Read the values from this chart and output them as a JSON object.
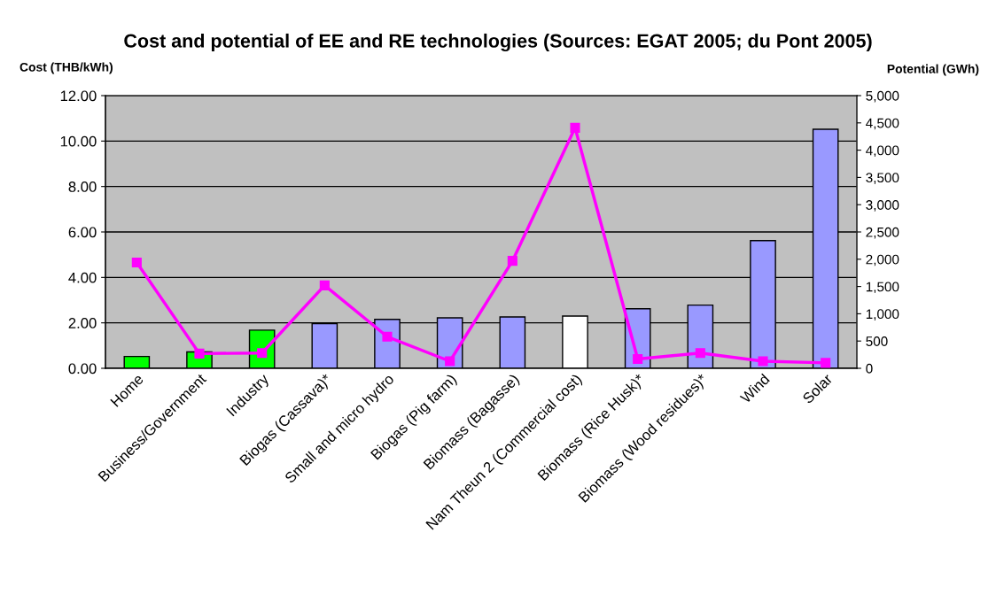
{
  "chart_data": {
    "type": "bar",
    "title": "Cost and potential of EE and RE technologies (Sources: EGAT 2005; du Pont 2005)",
    "ylabel": "Cost (THB/kWh)",
    "y2label": "Potential (GWh)",
    "categories": [
      "Home",
      "Business/Government",
      "Industry",
      "Biogas (Cassava)*",
      "Small and micro hydro",
      "Biogas (Pig farm)",
      "Biomass (Bagasse)",
      "Nam Theun 2 (Commercial cost)",
      "Biomass (Rice Husk)*",
      "Biomass (Wood residues)*",
      "Wind",
      "Solar"
    ],
    "series": [
      {
        "values": [
          0.52,
          0.72,
          1.68,
          1.97,
          2.15,
          2.22,
          2.26,
          2.3,
          2.62,
          2.78,
          5.62,
          10.52
        ],
        "colors": [
          "#00ff00",
          "#00ff00",
          "#00ff00",
          "#9999ff",
          "#9999ff",
          "#9999ff",
          "#9999ff",
          "#ffffff",
          "#9999ff",
          "#9999ff",
          "#9999ff",
          "#9999ff"
        ]
      },
      {
        "type": "line",
        "axis": "y2",
        "color": "#ff00ff",
        "marker": "square",
        "values": [
          1940,
          270,
          280,
          1520,
          580,
          130,
          1970,
          4410,
          170,
          280,
          130,
          100
        ]
      }
    ],
    "ylim": [
      0,
      12
    ],
    "yticks": [
      {
        "value": 0,
        "label": "0.00"
      },
      {
        "value": 2,
        "label": "2.00"
      },
      {
        "value": 4,
        "label": "4.00"
      },
      {
        "value": 6,
        "label": "6.00"
      },
      {
        "value": 8,
        "label": "8.00"
      },
      {
        "value": 10,
        "label": "10.00"
      },
      {
        "value": 12,
        "label": "12.00"
      }
    ],
    "y2lim": [
      0,
      5000
    ],
    "y2ticks": [
      0,
      {
        "value": 500,
        "label": "500"
      },
      {
        "value": 1000,
        "label": "1,000"
      },
      {
        "value": 1500,
        "label": "1,500"
      },
      {
        "value": 2000,
        "label": "2,000"
      },
      {
        "value": 2500,
        "label": "2,500"
      },
      {
        "value": 3000,
        "label": "3,000"
      },
      {
        "value": 3500,
        "label": "3,500"
      },
      {
        "value": 4000,
        "label": "4,000"
      },
      {
        "value": 4500,
        "label": "4,500"
      },
      {
        "value": 5000,
        "label": "5,000"
      }
    ],
    "grid": "y",
    "legend": false
  }
}
